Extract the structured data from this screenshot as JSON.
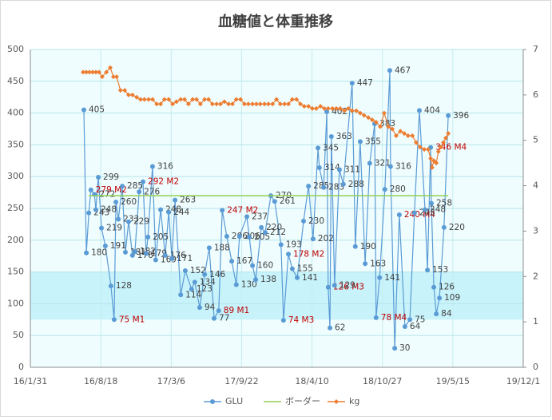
{
  "chart_data": {
    "type": "line",
    "title": "血糖値と体重推移",
    "xlim": [
      42400,
      43800
    ],
    "xticks": [
      {
        "value": 42400,
        "label": "16/1/31"
      },
      {
        "value": 42600,
        "label": "16/8/18"
      },
      {
        "value": 42800,
        "label": "17/3/6"
      },
      {
        "value": 43000,
        "label": "17/9/22"
      },
      {
        "value": 43200,
        "label": "18/4/10"
      },
      {
        "value": 43400,
        "label": "18/10/27"
      },
      {
        "value": 43600,
        "label": "19/5/15"
      },
      {
        "value": 43800,
        "label": "19/12/1"
      }
    ],
    "ylim": [
      0,
      500
    ],
    "yticks": [
      0,
      50,
      100,
      150,
      200,
      250,
      300,
      350,
      400,
      450,
      500
    ],
    "y2lim": [
      0,
      7
    ],
    "y2ticks": [
      0,
      1,
      2,
      3,
      4,
      5,
      6,
      7
    ],
    "grid": true,
    "plot_background": "#effdfe",
    "band": {
      "range": [
        75,
        150
      ],
      "color": "#c8f3fb"
    },
    "legend": "bottom",
    "highlight_label_color": "#c00000",
    "series": [
      {
        "name": "GLU",
        "color": "#5b9bd5",
        "marker": "circle",
        "x": [
          42552,
          42559,
          42566,
          42572,
          42582,
          42586,
          42593,
          42602,
          42613,
          42629,
          42638,
          42643,
          42650,
          42661,
          42670,
          42679,
          42690,
          42697,
          42709,
          42720,
          42729,
          42734,
          42747,
          42756,
          42770,
          42783,
          42793,
          42802,
          42811,
          42827,
          42840,
          42858,
          42867,
          42881,
          42895,
          42908,
          42922,
          42935,
          42945,
          42958,
          42972,
          42985,
          42994,
          43015,
          43022,
          43031,
          43040,
          43056,
          43067,
          43083,
          43094,
          43112,
          43119,
          43133,
          43144,
          43158,
          43176,
          43190,
          43203,
          43217,
          43221,
          43233,
          43242,
          43246,
          43251,
          43255,
          43264,
          43278,
          43289,
          43314,
          43323,
          43337,
          43351,
          43364,
          43378,
          43382,
          43392,
          43407,
          43421,
          43423,
          43435,
          43448,
          43464,
          43478,
          43491,
          43505,
          43521,
          43528,
          43537,
          43539,
          43546,
          43553,
          43562,
          43575,
          43587
        ],
        "values": [
          405,
          180,
          243,
          279,
          272,
          248,
          299,
          219,
          191,
          128,
          75,
          260,
          233,
          285,
          181,
          229,
          176,
          182,
          276,
          292,
          179,
          205,
          316,
          169,
          248,
          176,
          244,
          171,
          263,
          114,
          152,
          123,
          134,
          94,
          146,
          188,
          77,
          89,
          247,
          206,
          167,
          130,
          206,
          237,
          205,
          160,
          138,
          220,
          212,
          270,
          261,
          193,
          74,
          178,
          155,
          141,
          230,
          285,
          202,
          345,
          314,
          283,
          402,
          126,
          62,
          363,
          129,
          311,
          288,
          447,
          190,
          355,
          163,
          321,
          383,
          78,
          141,
          280,
          467,
          316,
          30,
          240,
          64,
          75,
          243,
          404,
          248,
          153,
          346,
          258,
          126,
          84,
          109,
          220,
          396
        ],
        "value_labels": [
          "405",
          "180",
          "243",
          "279 M2",
          "272",
          "248",
          "299",
          "219",
          "191",
          "128",
          "75 M1",
          "260",
          "233",
          "285",
          "181",
          "229",
          "176",
          "182",
          "276",
          "292 M2",
          "179",
          "205",
          "316",
          "169",
          "248",
          "176",
          "244",
          "171",
          "263",
          "114",
          "152",
          "123",
          "134",
          "94",
          "146",
          "188",
          "77",
          "89 M1",
          "247 M2",
          "206",
          "167",
          "130",
          "206",
          "237",
          "205",
          "160",
          "138",
          "220",
          "212",
          "270",
          "261",
          "193",
          "74 M3",
          "178 M2",
          "155",
          "141",
          "230",
          "285",
          "202",
          "345",
          "314",
          "283",
          "402",
          "126 M3",
          "62",
          "363",
          "129",
          "311",
          "288",
          "447",
          "190",
          "355",
          "163",
          "321",
          "383",
          "78 M4",
          "141",
          "280",
          "467",
          "316",
          "30",
          "240 M4",
          "64",
          "75",
          "243",
          "404",
          "248",
          "153",
          "346 M4",
          "258",
          "126",
          "84",
          "109",
          "220",
          "396"
        ]
      },
      {
        "name": "ボーダー",
        "color": "#92d050",
        "marker": "none",
        "x": [
          42566,
          43587
        ],
        "values": [
          270,
          270
        ]
      },
      {
        "name": "kg",
        "color": "#ed7d31",
        "marker": "diamond",
        "axis": "y2",
        "x": [
          42550,
          42559,
          42568,
          42577,
          42586,
          42595,
          42604,
          42616,
          42627,
          42636,
          42645,
          42656,
          42668,
          42679,
          42690,
          42702,
          42713,
          42724,
          42736,
          42747,
          42759,
          42770,
          42781,
          42793,
          42804,
          42815,
          42827,
          42838,
          42849,
          42861,
          42872,
          42883,
          42895,
          42906,
          42917,
          42929,
          42940,
          42951,
          42963,
          42974,
          42985,
          42997,
          43008,
          43019,
          43031,
          43042,
          43053,
          43065,
          43076,
          43088,
          43099,
          43110,
          43122,
          43133,
          43144,
          43156,
          43167,
          43178,
          43190,
          43201,
          43212,
          43224,
          43235,
          43246,
          43258,
          43269,
          43280,
          43292,
          43303,
          43314,
          43326,
          43337,
          43348,
          43360,
          43371,
          43382,
          43394,
          43405,
          43417,
          43428,
          43439,
          43451,
          43462,
          43473,
          43485,
          43496,
          43507,
          43519,
          43530,
          43537,
          43541,
          43546,
          43553,
          43559,
          43566,
          43573,
          43580,
          43587
        ],
        "values": [
          6.5,
          6.5,
          6.5,
          6.5,
          6.5,
          6.5,
          6.4,
          6.5,
          6.6,
          6.4,
          6.4,
          6.1,
          6.1,
          6.0,
          6.0,
          5.95,
          5.9,
          5.9,
          5.9,
          5.9,
          5.8,
          5.8,
          5.9,
          5.9,
          5.8,
          5.85,
          5.9,
          5.9,
          5.8,
          5.9,
          5.9,
          5.8,
          5.9,
          5.9,
          5.8,
          5.8,
          5.8,
          5.85,
          5.8,
          5.8,
          5.9,
          5.9,
          5.8,
          5.8,
          5.8,
          5.8,
          5.8,
          5.8,
          5.8,
          5.8,
          5.9,
          5.8,
          5.8,
          5.8,
          5.9,
          5.9,
          5.8,
          5.75,
          5.75,
          5.7,
          5.7,
          5.75,
          5.7,
          5.7,
          5.7,
          5.7,
          5.7,
          5.65,
          5.7,
          5.65,
          5.65,
          5.6,
          5.55,
          5.5,
          5.45,
          5.4,
          5.3,
          5.6,
          5.3,
          5.25,
          5.1,
          5.2,
          5.15,
          5.1,
          5.1,
          4.95,
          4.85,
          4.8,
          4.8,
          4.6,
          4.4,
          4.55,
          4.5,
          4.75,
          4.85,
          4.95,
          5.05,
          5.15
        ]
      }
    ]
  }
}
